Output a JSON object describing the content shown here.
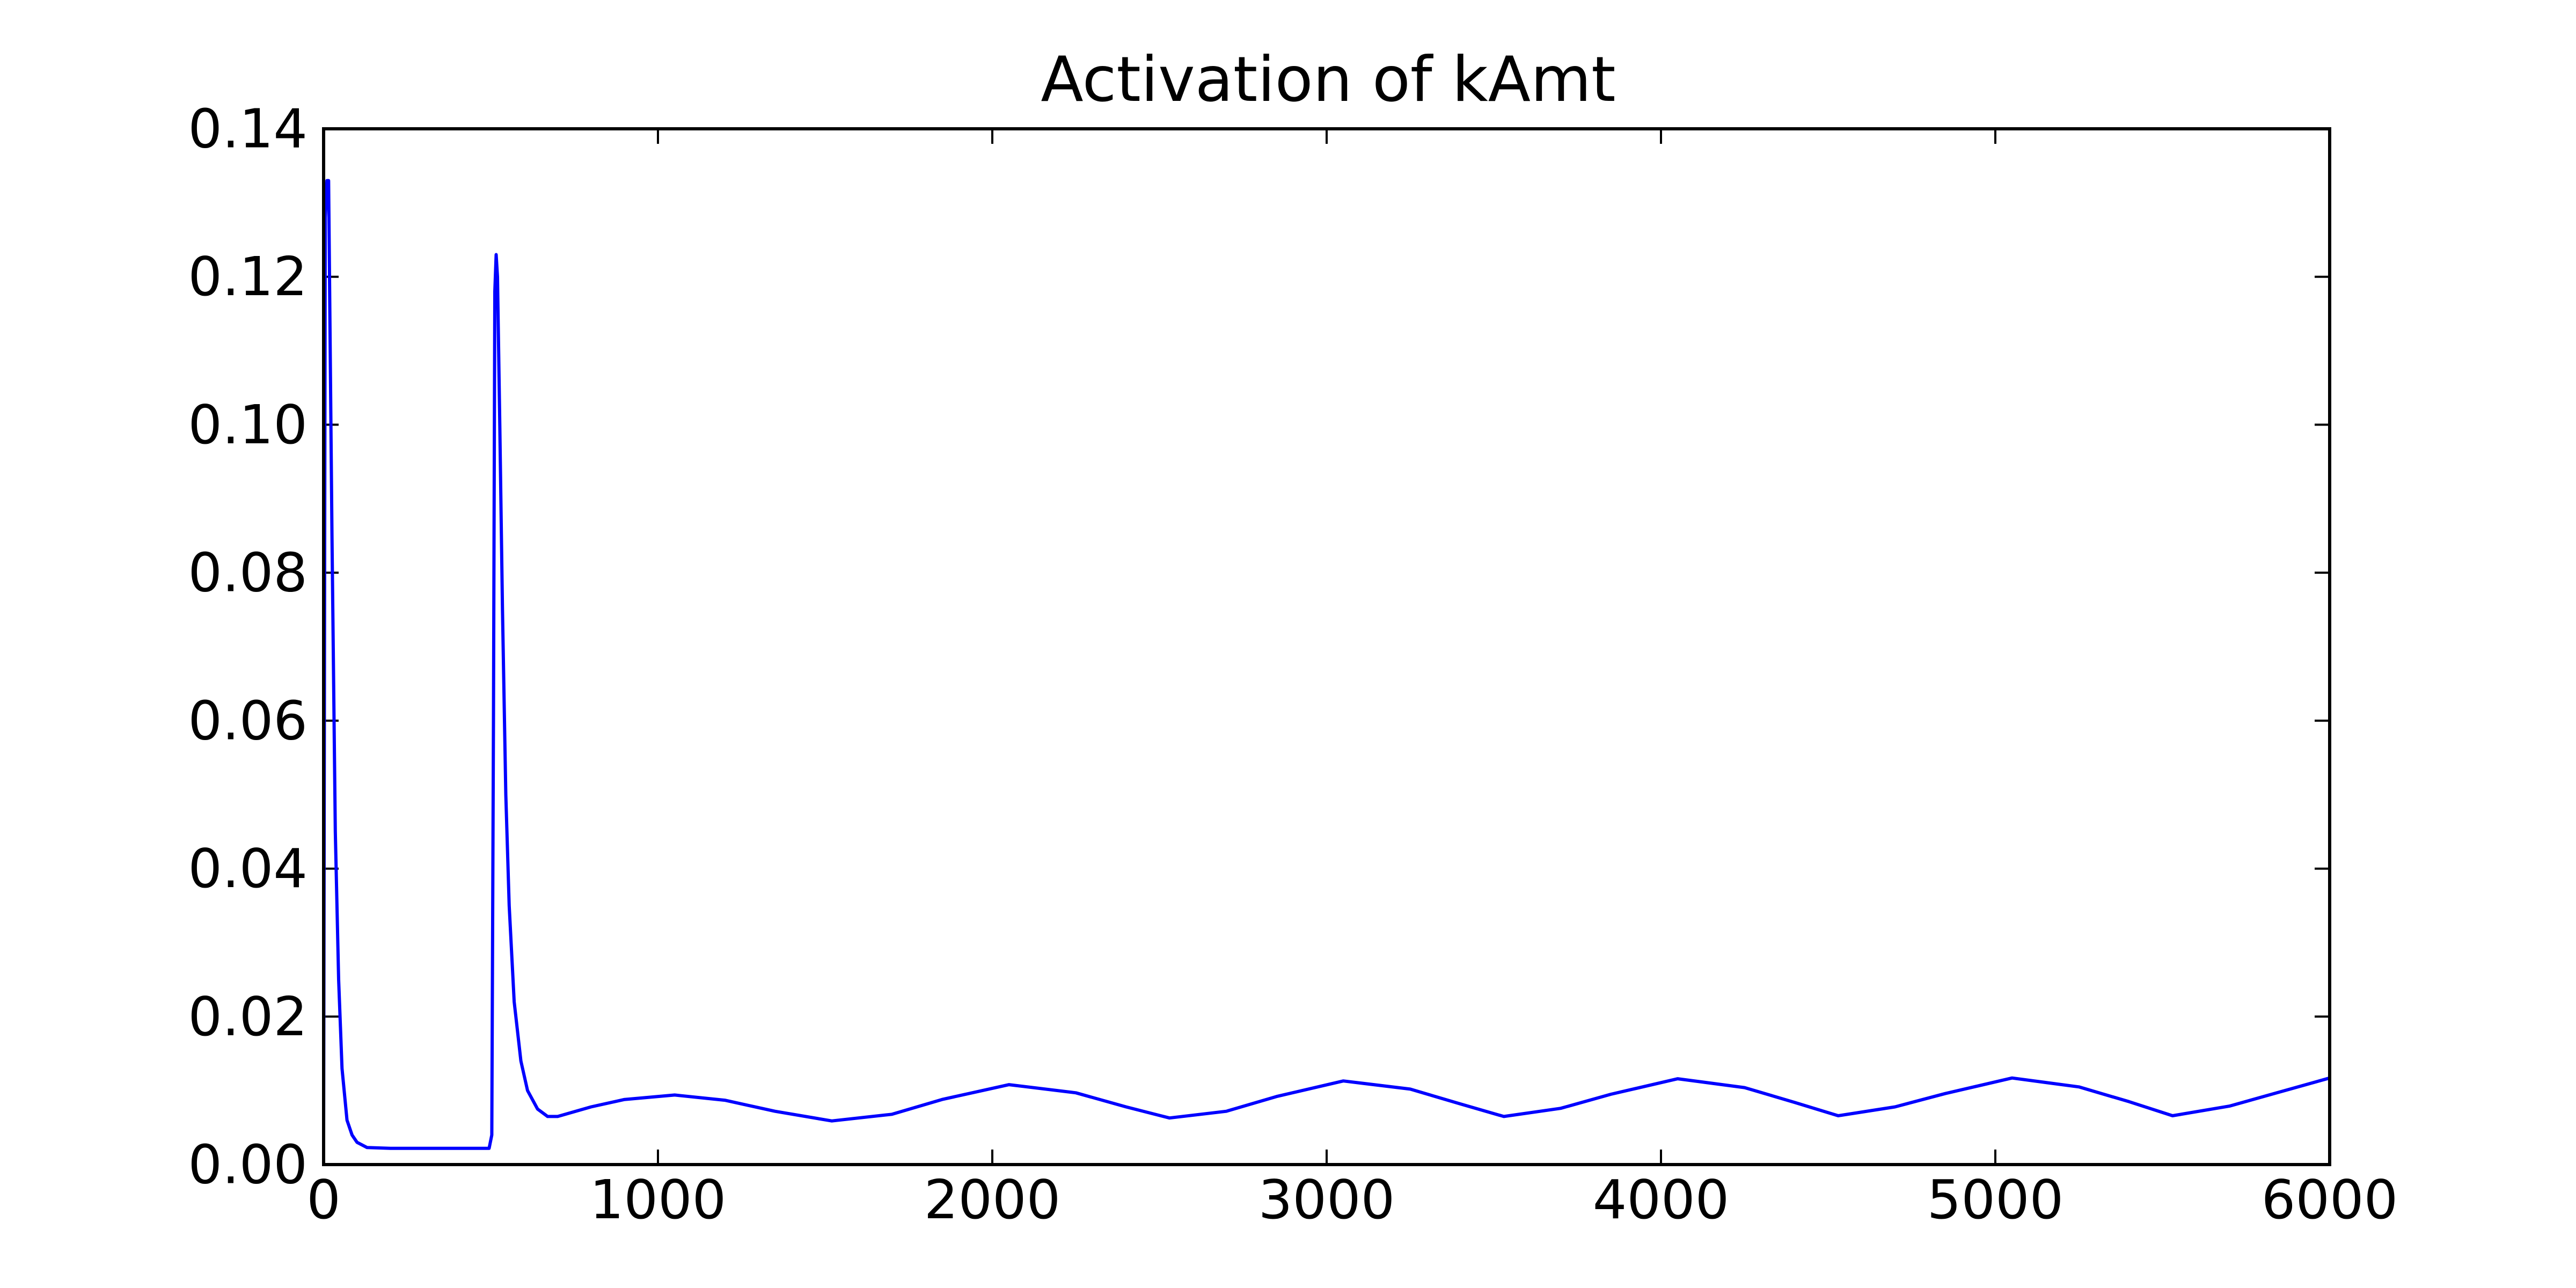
{
  "chart_data": {
    "type": "line",
    "title": "Activation of kAmt",
    "xlabel": "",
    "ylabel": "",
    "xlim": [
      0,
      6000
    ],
    "ylim": [
      0,
      0.14
    ],
    "xticks": [
      0,
      1000,
      2000,
      3000,
      4000,
      5000,
      6000
    ],
    "xtick_labels": [
      "0",
      "1000",
      "2000",
      "3000",
      "4000",
      "5000",
      "6000"
    ],
    "yticks": [
      0,
      0.02,
      0.04,
      0.06,
      0.08,
      0.1,
      0.12,
      0.14
    ],
    "ytick_labels": [
      "0.00",
      "0.02",
      "0.04",
      "0.06",
      "0.08",
      "0.10",
      "0.12",
      "0.14"
    ],
    "grid": false,
    "legend": "none",
    "line_color": "#0000ff",
    "series": [
      {
        "x": [
          0,
          5,
          10,
          15,
          25,
          35,
          45,
          55,
          70,
          85,
          100,
          130,
          200,
          300,
          400,
          495,
          503,
          508,
          512,
          516,
          520,
          527,
          535,
          545,
          555,
          570,
          590,
          610,
          640,
          670,
          700,
          800,
          900,
          1050,
          1200,
          1350,
          1520,
          1700,
          1850,
          2050,
          2250,
          2400,
          2530,
          2700,
          2850,
          3050,
          3250,
          3400,
          3530,
          3700,
          3850,
          4050,
          4250,
          4400,
          4530,
          4700,
          4850,
          5050,
          5250,
          5400,
          5530,
          5700,
          5850,
          6000
        ],
        "y": [
          0.003,
          0.128,
          0.133,
          0.133,
          0.085,
          0.045,
          0.025,
          0.013,
          0.006,
          0.004,
          0.003,
          0.0023,
          0.0022,
          0.0022,
          0.0022,
          0.0022,
          0.004,
          0.06,
          0.118,
          0.123,
          0.12,
          0.1,
          0.075,
          0.05,
          0.035,
          0.022,
          0.014,
          0.01,
          0.0075,
          0.0065,
          0.0065,
          0.0078,
          0.0088,
          0.0094,
          0.0087,
          0.0072,
          0.0059,
          0.0068,
          0.0088,
          0.0108,
          0.0097,
          0.0078,
          0.0063,
          0.0072,
          0.0092,
          0.0113,
          0.0102,
          0.0082,
          0.0065,
          0.0076,
          0.0095,
          0.0116,
          0.0104,
          0.0084,
          0.0066,
          0.0078,
          0.0096,
          0.0117,
          0.0105,
          0.0085,
          0.0066,
          0.0079,
          0.0098,
          0.0117
        ]
      }
    ]
  }
}
